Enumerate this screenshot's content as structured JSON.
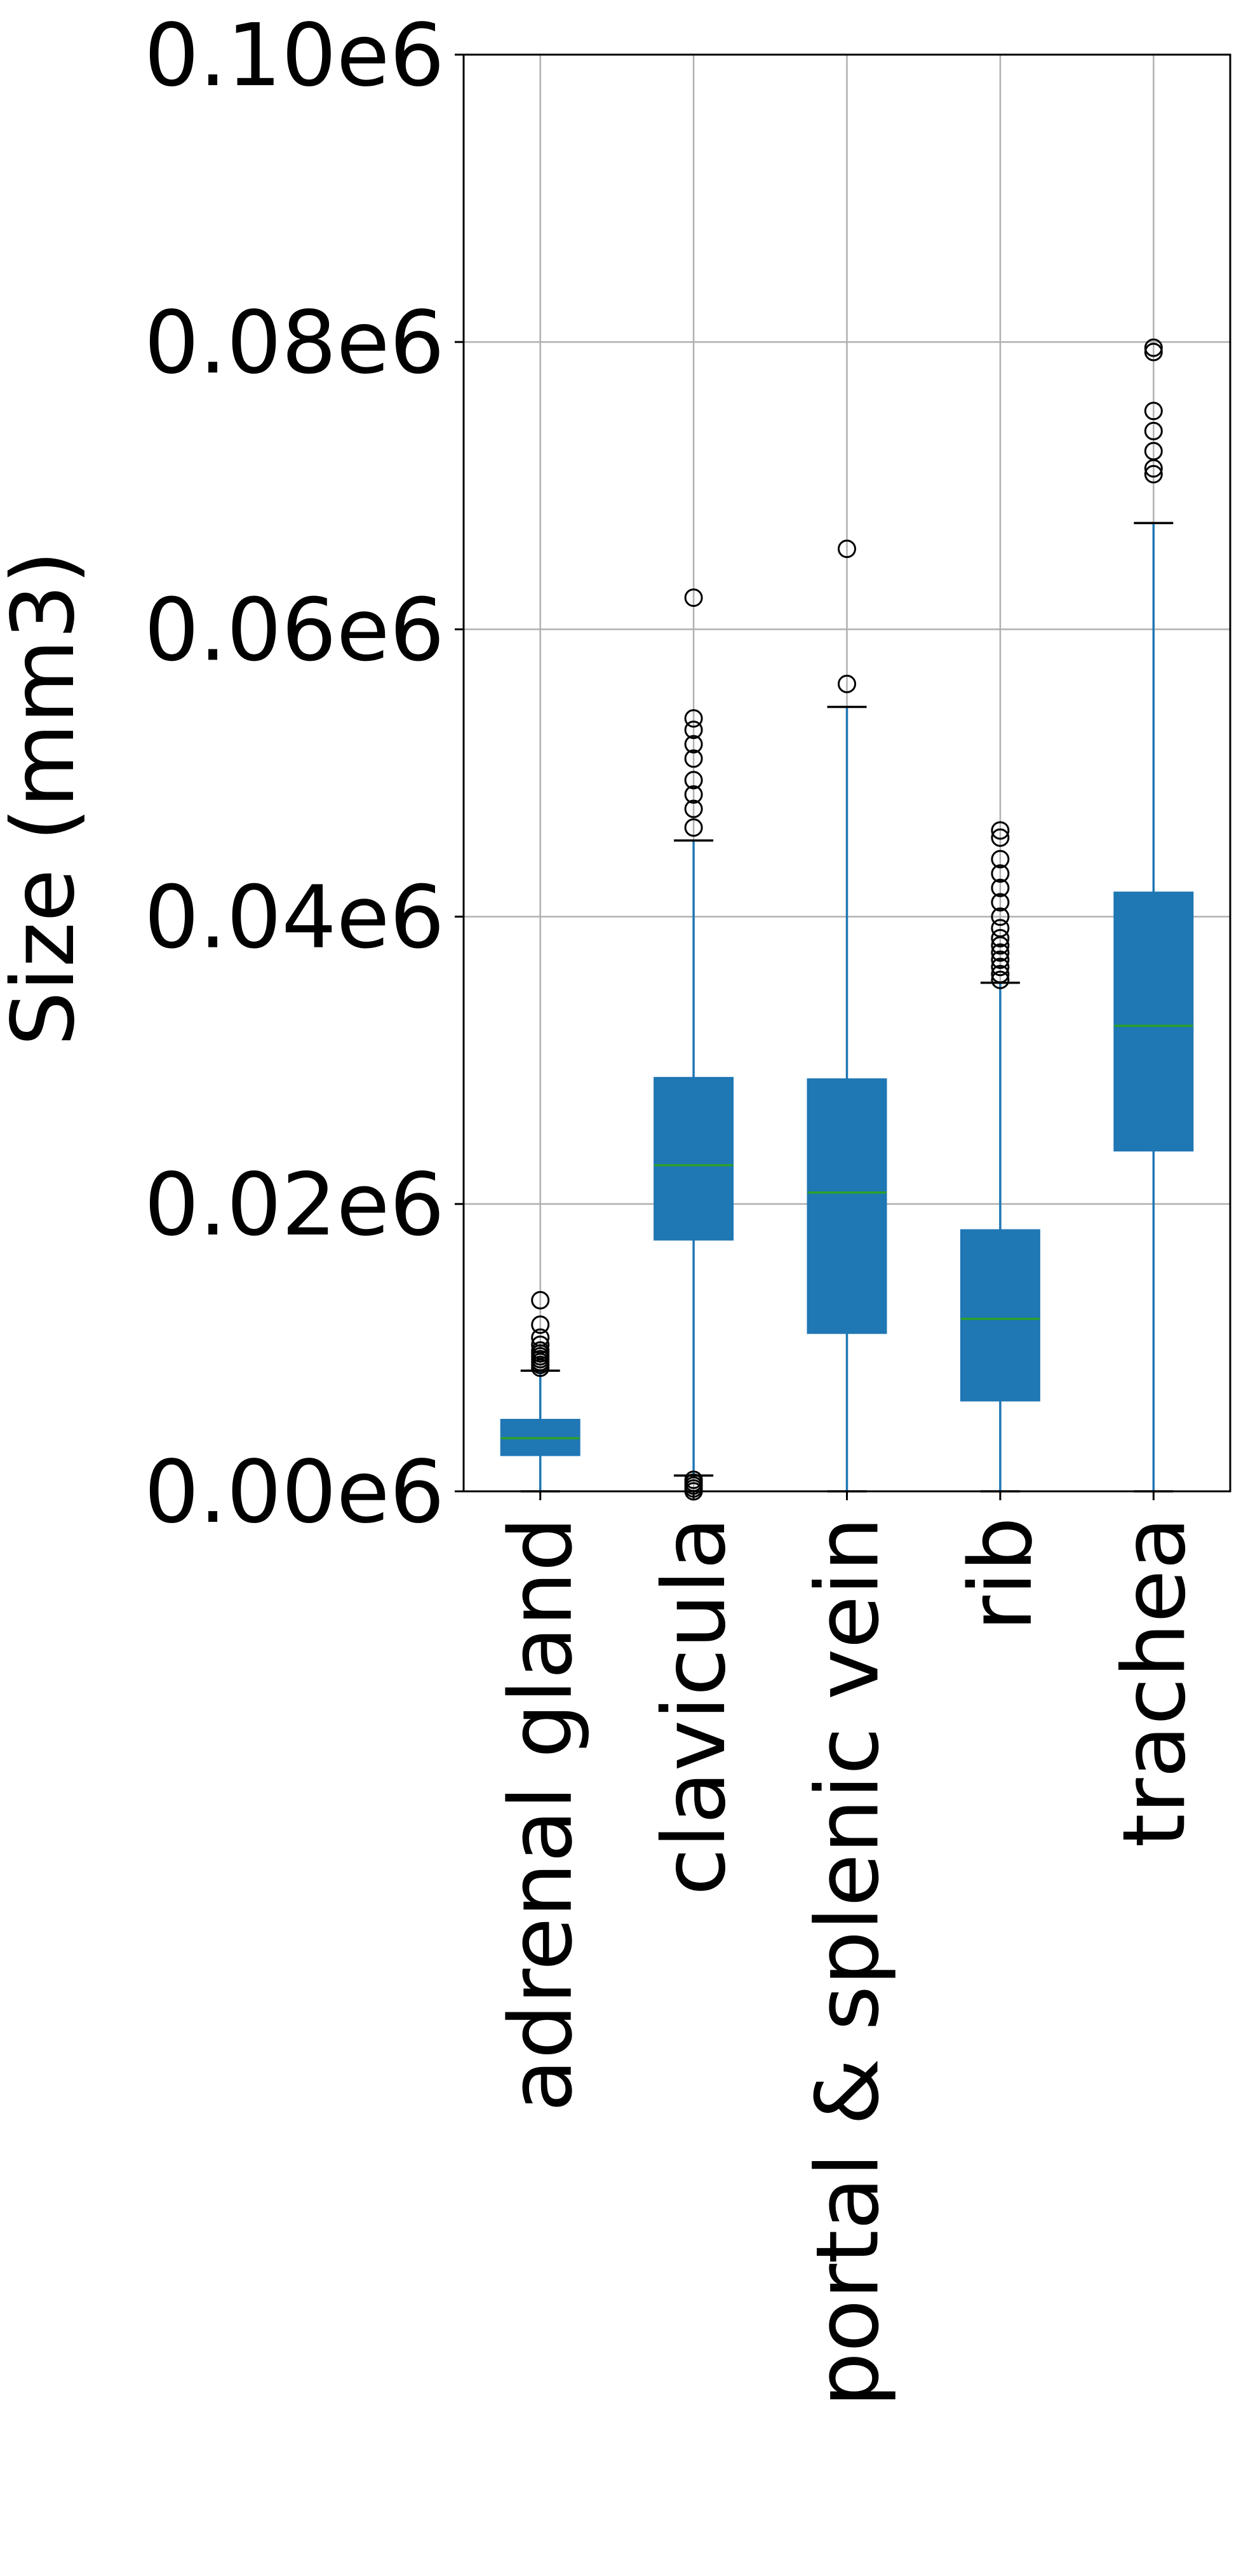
{
  "chart_data": {
    "type": "box",
    "ylabel": "Size (mm3)",
    "ylim": [
      0,
      100000
    ],
    "yticks": [
      0,
      20000,
      40000,
      60000,
      80000,
      100000
    ],
    "ytick_labels": [
      "0.00e6",
      "0.02e6",
      "0.04e6",
      "0.06e6",
      "0.08e6",
      "0.10e6"
    ],
    "grid": true,
    "box_color": "#1f77b4",
    "median_color": "#2ca02c",
    "categories": [
      "adrenal gland",
      "clavicula",
      "portal & splenic vein",
      "rib",
      "trachea"
    ],
    "boxes": [
      {
        "category": "adrenal gland",
        "whisker_low": 0,
        "q1": 2500,
        "median": 3700,
        "q3": 5000,
        "whisker_high": 8400,
        "outliers": [
          8600,
          8800,
          9000,
          9200,
          9400,
          9600,
          9800,
          10200,
          10700,
          11600,
          13300
        ]
      },
      {
        "category": "clavicula",
        "whisker_low": 1100,
        "q1": 17500,
        "median": 22700,
        "q3": 28800,
        "whisker_high": 45300,
        "outliers": [
          0,
          200,
          400,
          600,
          800,
          46200,
          47500,
          48500,
          49500,
          51000,
          52000,
          53000,
          53800,
          62200
        ]
      },
      {
        "category": "portal & splenic vein",
        "whisker_low": 0,
        "q1": 11000,
        "median": 20800,
        "q3": 28700,
        "whisker_high": 54600,
        "outliers": [
          56200,
          65600
        ]
      },
      {
        "category": "rib",
        "whisker_low": 0,
        "q1": 6300,
        "median": 12000,
        "q3": 18200,
        "whisker_high": 35400,
        "outliers": [
          35600,
          36000,
          36500,
          37000,
          37500,
          38000,
          38500,
          39200,
          40000,
          41000,
          42000,
          43000,
          44000,
          45500,
          46000
        ]
      },
      {
        "category": "trachea",
        "whisker_low": 0,
        "q1": 23700,
        "median": 32400,
        "q3": 41700,
        "whisker_high": 67400,
        "outliers": [
          70800,
          71200,
          72400,
          73800,
          75200,
          79300,
          79600
        ]
      }
    ]
  }
}
